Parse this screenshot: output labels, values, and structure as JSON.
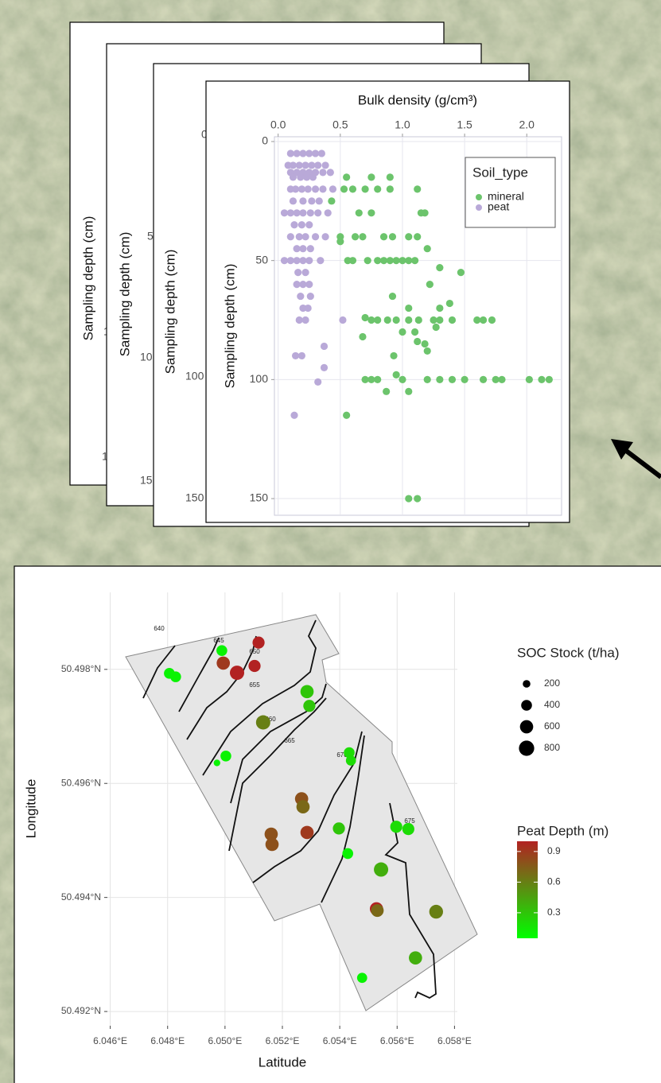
{
  "background_panels": [
    {
      "y_label": "Sampling depth (cm)",
      "tick_labels": [
        "1",
        "1"
      ]
    },
    {
      "y_label": "Sampling depth (cm)",
      "tick_labels": [
        "5",
        "10",
        "15"
      ]
    },
    {
      "y_label": "Sampling depth (cm)",
      "tick_labels": [
        "0",
        "100",
        "150"
      ]
    }
  ],
  "chart_data": [
    {
      "type": "scatter",
      "x_label": "Bulk density (g/cm³)",
      "y_label": "Sampling depth (cm)",
      "legend_title": "Soil_type",
      "legend": "top-right",
      "grid": true,
      "xlim": [
        -0.03,
        2.28
      ],
      "xticks": [
        {
          "value": 0,
          "label": "0.0"
        },
        0.5,
        {
          "value": 1,
          "label": "1.0"
        },
        1.5,
        {
          "value": 2,
          "label": "2.0"
        }
      ],
      "ylim": [
        -2,
        157
      ],
      "y_inverted": true,
      "yticks": [
        0,
        50,
        100,
        150
      ],
      "series": [
        {
          "name": "mineral",
          "color": "#6cc46c",
          "x": [
            0.55,
            0.75,
            0.9,
            0.53,
            0.6,
            0.7,
            0.8,
            0.9,
            1.12,
            0.43,
            0.65,
            0.75,
            1.15,
            1.18,
            0.5,
            0.62,
            0.68,
            0.85,
            0.92,
            1.05,
            1.12,
            0.5,
            0.56,
            0.6,
            0.72,
            0.8,
            0.85,
            0.9,
            0.95,
            1.0,
            1.05,
            1.1,
            1.2,
            1.3,
            1.47,
            1.22,
            0.92,
            1.38,
            1.05,
            1.3,
            0.7,
            0.75,
            0.8,
            0.88,
            0.95,
            1.05,
            1.13,
            1.25,
            1.3,
            1.4,
            1.6,
            1.65,
            1.72,
            1.27,
            1.0,
            1.1,
            0.68,
            1.12,
            1.18,
            1.2,
            0.93,
            0.7,
            0.75,
            0.8,
            1.0,
            1.2,
            1.3,
            1.4,
            1.5,
            1.65,
            1.75,
            1.8,
            2.02,
            2.12,
            2.18,
            0.95,
            0.87,
            1.05,
            0.55,
            1.05,
            1.12
          ],
          "values": [
            15,
            15,
            15,
            20,
            20,
            20,
            20,
            20,
            20,
            25,
            30,
            30,
            30,
            30,
            40,
            40,
            40,
            40,
            40,
            40,
            40,
            42,
            50,
            50,
            50,
            50,
            50,
            50,
            50,
            50,
            50,
            50,
            45,
            53,
            55,
            60,
            65,
            68,
            70,
            70,
            74,
            75,
            75,
            75,
            75,
            75,
            75,
            75,
            75,
            75,
            75,
            75,
            75,
            78,
            80,
            80,
            82,
            84,
            85,
            88,
            90,
            100,
            100,
            100,
            100,
            100,
            100,
            100,
            100,
            100,
            100,
            100,
            100,
            100,
            100,
            98,
            105,
            105,
            115,
            150,
            150
          ]
        },
        {
          "name": "peat",
          "color": "#b9a9d8",
          "x": [
            0.1,
            0.15,
            0.2,
            0.25,
            0.3,
            0.35,
            0.08,
            0.12,
            0.17,
            0.22,
            0.27,
            0.32,
            0.38,
            0.1,
            0.15,
            0.2,
            0.25,
            0.3,
            0.36,
            0.42,
            0.12,
            0.18,
            0.23,
            0.28,
            0.1,
            0.14,
            0.19,
            0.24,
            0.3,
            0.36,
            0.44,
            0.12,
            0.2,
            0.27,
            0.33,
            0.05,
            0.1,
            0.15,
            0.2,
            0.26,
            0.32,
            0.4,
            0.13,
            0.19,
            0.25,
            0.1,
            0.17,
            0.22,
            0.3,
            0.38,
            0.15,
            0.2,
            0.26,
            0.05,
            0.1,
            0.15,
            0.2,
            0.25,
            0.34,
            0.16,
            0.22,
            0.15,
            0.2,
            0.25,
            0.18,
            0.26,
            0.2,
            0.24,
            0.17,
            0.22,
            0.52,
            0.14,
            0.19,
            0.37,
            0.37,
            0.32,
            0.13
          ],
          "values": [
            5,
            5,
            5,
            5,
            5,
            5,
            10,
            10,
            10,
            10,
            10,
            10,
            10,
            13,
            13,
            13,
            13,
            13,
            13,
            13,
            15,
            15,
            15,
            15,
            20,
            20,
            20,
            20,
            20,
            20,
            20,
            25,
            25,
            25,
            25,
            30,
            30,
            30,
            30,
            30,
            30,
            30,
            35,
            35,
            35,
            40,
            40,
            40,
            40,
            40,
            45,
            45,
            45,
            50,
            50,
            50,
            50,
            50,
            50,
            55,
            55,
            60,
            60,
            60,
            65,
            65,
            70,
            70,
            75,
            75,
            75,
            90,
            90,
            86,
            95,
            101,
            115
          ]
        }
      ]
    },
    {
      "type": "map",
      "x_label": "Latitude",
      "y_label": "Longitude",
      "grid": true,
      "xlim": [
        6.0459,
        6.0581
      ],
      "ylim": [
        50.49175,
        50.49935
      ],
      "xticks": [
        {
          "value": 6.046,
          "label": "6.046°E"
        },
        {
          "value": 6.048,
          "label": "6.048°E"
        },
        {
          "value": 6.05,
          "label": "6.050°E"
        },
        {
          "value": 6.052,
          "label": "6.052°E"
        },
        {
          "value": 6.054,
          "label": "6.054°E"
        },
        {
          "value": 6.056,
          "label": "6.056°E"
        },
        {
          "value": 6.058,
          "label": "6.058°E"
        }
      ],
      "yticks": [
        {
          "value": 50.492,
          "label": "50.492°N"
        },
        {
          "value": 50.494,
          "label": "50.494°N"
        },
        {
          "value": 50.496,
          "label": "50.496°N"
        },
        {
          "value": 50.498,
          "label": "50.498°N"
        }
      ],
      "contour_labels": [
        "640",
        "645",
        "650",
        "655",
        "660",
        "665",
        "670",
        "675"
      ],
      "size_title": "SOC Stock (t/ha)",
      "size_ticks": [
        200,
        400,
        600,
        800
      ],
      "color_title": "Peat Depth (m)",
      "color_scale": [
        "#00ff00",
        "#b22222"
      ],
      "color_lim": [
        0.05,
        1.0
      ],
      "color_ticks": [
        0.3,
        0.6,
        0.9
      ],
      "x": [
        6.04806,
        6.04828,
        6.04989,
        6.04994,
        6.05042,
        6.05117,
        6.05103,
        6.05286,
        6.05294,
        6.05133,
        6.05003,
        6.04972,
        6.05267,
        6.05272,
        6.05161,
        6.05164,
        6.05286,
        6.05433,
        6.05439,
        6.05397,
        6.05428,
        6.05597,
        6.05639,
        6.05544,
        6.05528,
        6.05531,
        6.05736,
        6.05664,
        6.05478
      ],
      "values": [
        50.49793,
        50.49787,
        50.49833,
        50.49811,
        50.49794,
        50.49847,
        50.49806,
        50.49761,
        50.49736,
        50.49707,
        50.49648,
        50.49636,
        50.49573,
        50.49559,
        50.49511,
        50.49493,
        50.49514,
        50.49654,
        50.4964,
        50.49521,
        50.49477,
        50.49524,
        50.4952,
        50.49449,
        50.4938,
        50.49377,
        50.49375,
        50.49294,
        50.49259
      ],
      "sizes": [
        400,
        400,
        400,
        600,
        700,
        500,
        500,
        600,
        500,
        700,
        400,
        150,
        600,
        600,
        600,
        600,
        600,
        400,
        350,
        500,
        400,
        500,
        500,
        700,
        600,
        550,
        650,
        600,
        350
      ],
      "depths": [
        0.1,
        0.1,
        0.1,
        0.9,
        1.0,
        1.1,
        1.1,
        0.3,
        0.3,
        0.6,
        0.1,
        0.1,
        0.8,
        0.7,
        0.8,
        0.8,
        0.9,
        0.2,
        0.2,
        0.3,
        0.1,
        0.2,
        0.2,
        0.4,
        1.0,
        0.7,
        0.6,
        0.4,
        0.1
      ]
    }
  ]
}
